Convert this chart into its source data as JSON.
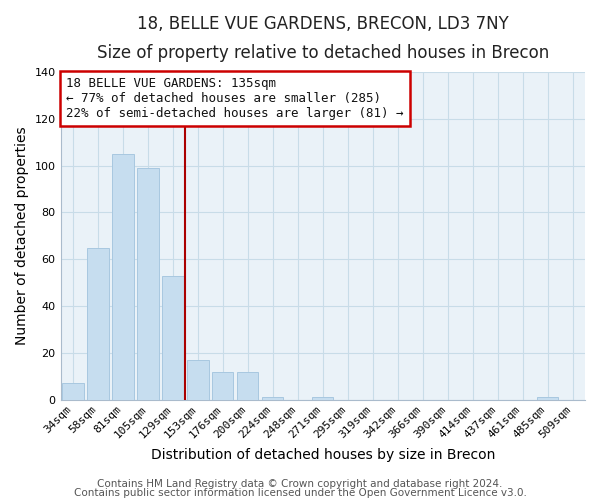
{
  "title": "18, BELLE VUE GARDENS, BRECON, LD3 7NY",
  "subtitle": "Size of property relative to detached houses in Brecon",
  "xlabel": "Distribution of detached houses by size in Brecon",
  "ylabel": "Number of detached properties",
  "bar_labels": [
    "34sqm",
    "58sqm",
    "81sqm",
    "105sqm",
    "129sqm",
    "153sqm",
    "176sqm",
    "200sqm",
    "224sqm",
    "248sqm",
    "271sqm",
    "295sqm",
    "319sqm",
    "342sqm",
    "366sqm",
    "390sqm",
    "414sqm",
    "437sqm",
    "461sqm",
    "485sqm",
    "509sqm"
  ],
  "bar_values": [
    7,
    65,
    105,
    99,
    53,
    17,
    12,
    12,
    1,
    0,
    1,
    0,
    0,
    0,
    0,
    0,
    0,
    0,
    0,
    1,
    0
  ],
  "bar_color": "#c6ddef",
  "bar_edge_color": "#a8c8e0",
  "vline_color": "#aa0000",
  "vline_x_index": 4,
  "annotation_line1": "18 BELLE VUE GARDENS: 135sqm",
  "annotation_line2": "← 77% of detached houses are smaller (285)",
  "annotation_line3": "22% of semi-detached houses are larger (81) →",
  "annotation_box_color": "#cc0000",
  "ylim": [
    0,
    140
  ],
  "yticks": [
    0,
    20,
    40,
    60,
    80,
    100,
    120,
    140
  ],
  "footer_line1": "Contains HM Land Registry data © Crown copyright and database right 2024.",
  "footer_line2": "Contains public sector information licensed under the Open Government Licence v3.0.",
  "background_color": "#ffffff",
  "plot_bg_color": "#eaf2f8",
  "grid_color": "#c8dce8",
  "title_fontsize": 12,
  "subtitle_fontsize": 10,
  "axis_label_fontsize": 10,
  "tick_fontsize": 8,
  "annotation_fontsize": 9,
  "footer_fontsize": 7.5
}
